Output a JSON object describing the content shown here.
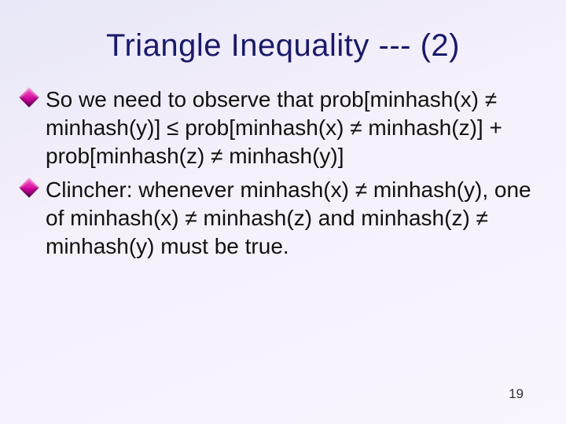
{
  "slide": {
    "title": "Triangle Inequality --- (2)",
    "bullets": [
      "So we need to observe that prob[minhash(x) ≠ minhash(y)] ≤ prob[minhash(x) ≠ minhash(z)] + prob[minhash(z) ≠ minhash(y)]",
      "Clincher: whenever minhash(x) ≠ minhash(y), one of minhash(x) ≠ minhash(z) and minhash(z) ≠ minhash(y) must be true."
    ],
    "page_number": "19",
    "colors": {
      "title_color": "#1a1a6a",
      "body_color": "#111111",
      "bullet_gradient_start": "#ff66cc",
      "bullet_gradient_end": "#660066",
      "background_top": "#e8e8f8",
      "background_bottom": "#faf5ff"
    },
    "typography": {
      "title_fontsize_pt": 30,
      "body_fontsize_pt": 21,
      "font_family": "Tahoma"
    }
  }
}
